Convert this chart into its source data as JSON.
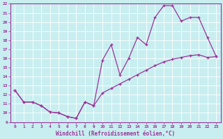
{
  "xlabel": "Windchill (Refroidissement éolien,°C)",
  "bg_color": "#c8eef0",
  "line_color": "#993399",
  "xlim": [
    -0.5,
    23.5
  ],
  "ylim": [
    9,
    22
  ],
  "xticks": [
    0,
    1,
    2,
    3,
    4,
    5,
    6,
    7,
    8,
    9,
    10,
    11,
    12,
    13,
    14,
    15,
    16,
    17,
    18,
    19,
    20,
    21,
    22,
    23
  ],
  "yticks": [
    9,
    10,
    11,
    12,
    13,
    14,
    15,
    16,
    17,
    18,
    19,
    20,
    21,
    22
  ],
  "line1_x": [
    0,
    1,
    2,
    3,
    4,
    5,
    6,
    7,
    8,
    9,
    10,
    11,
    12,
    13,
    14,
    15,
    16,
    17,
    18,
    19,
    20,
    21,
    22,
    23
  ],
  "line1_y": [
    12.5,
    11.2,
    11.2,
    10.8,
    10.1,
    10.0,
    9.6,
    9.4,
    11.2,
    10.8,
    15.8,
    17.5,
    14.2,
    16.0,
    18.3,
    17.5,
    20.5,
    21.8,
    21.8,
    20.1,
    20.5,
    20.5,
    18.3,
    16.2
  ],
  "line2_x": [
    0,
    1,
    2,
    3,
    4,
    5,
    6,
    7,
    8,
    9,
    10,
    11,
    12,
    13,
    14,
    15,
    16,
    17,
    18,
    19,
    20,
    21,
    22,
    23
  ],
  "line2_y": [
    12.5,
    11.2,
    11.2,
    10.8,
    10.1,
    10.0,
    9.6,
    9.4,
    11.2,
    10.8,
    12.2,
    12.7,
    13.2,
    13.7,
    14.2,
    14.7,
    15.2,
    15.6,
    15.9,
    16.1,
    16.3,
    16.4,
    16.1,
    16.2
  ]
}
